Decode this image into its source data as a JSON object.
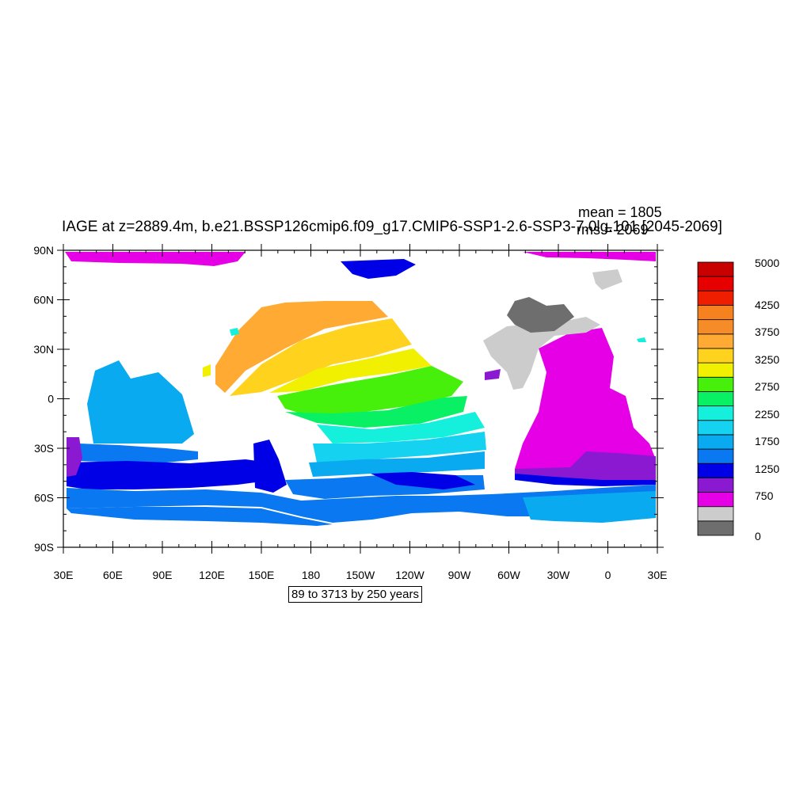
{
  "title": "IAGE at z=2889.4m, b.e21.BSSP126cmip6.f09_g17.CMIP6-SSP1-2.6-SSP3-7.0lg.101 [2045-2069]",
  "stats": {
    "mean": "mean = 1805",
    "rms": "rms = 2069"
  },
  "footer": "89 to 3713 by 250 years",
  "axes": {
    "lat_labels": [
      "90N",
      "60N",
      "30N",
      "0",
      "30S",
      "60S",
      "90S"
    ],
    "lon_labels": [
      "30E",
      "60E",
      "90E",
      "120E",
      "150E",
      "180",
      "150W",
      "120W",
      "90W",
      "60W",
      "30W",
      "0",
      "30E"
    ]
  },
  "colorbar": {
    "labels": [
      "5000",
      "4250",
      "3750",
      "3250",
      "2750",
      "2250",
      "1750",
      "1250",
      "750",
      "0"
    ],
    "colors": [
      "#6e6e6e",
      "#cccccc",
      "#e600e6",
      "#8c19d2",
      "#0000e6",
      "#0a78f0",
      "#0aaaf0",
      "#14d2f0",
      "#14f0dc",
      "#0af064",
      "#46f00a",
      "#f0f000",
      "#ffd21e",
      "#ffaa32",
      "#f58c28",
      "#f5821e",
      "#f01e00",
      "#e60000",
      "#c80000"
    ]
  },
  "chart_data": {
    "type": "heatmap",
    "title": "IAGE at z=2889.4m, b.e21.BSSP126cmip6.f09_g17.CMIP6-SSP1-2.6-SSP3-7.0lg.101 [2045-2069]",
    "variable": "IAGE",
    "depth": "z=2889.4m",
    "period": "2045-2069",
    "mean": 1805,
    "rms": 2069,
    "contour_min": 89,
    "contour_max": 3713,
    "contour_interval": 250,
    "units": "years",
    "lon_range": [
      30,
      390
    ],
    "lat_range": [
      -90,
      90
    ],
    "colorbar_range": [
      0,
      5000
    ]
  }
}
